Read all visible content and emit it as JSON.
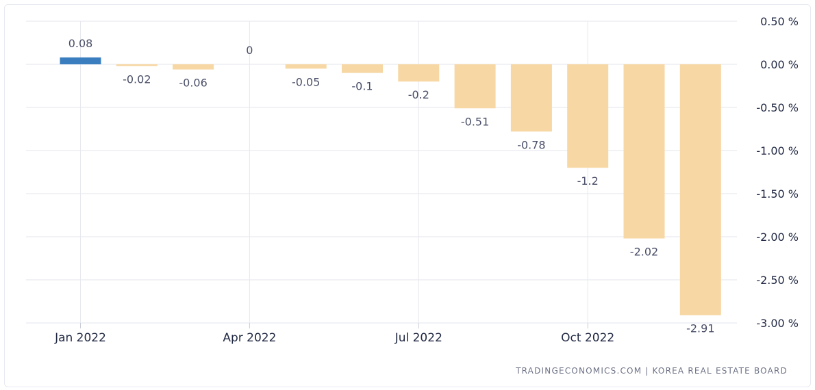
{
  "chart_data": {
    "type": "bar",
    "categories": [
      "Jan 2022",
      "Feb 2022",
      "Mar 2022",
      "Apr 2022",
      "May 2022",
      "Jun 2022",
      "Jul 2022",
      "Aug 2022",
      "Sep 2022",
      "Oct 2022",
      "Nov 2022",
      "Dec 2022"
    ],
    "values": [
      0.08,
      -0.02,
      -0.06,
      0,
      -0.05,
      -0.1,
      -0.2,
      -0.51,
      -0.78,
      -1.2,
      -2.02,
      -2.91
    ],
    "data_labels": [
      "0.08",
      "-0.02",
      "-0.06",
      "0",
      "-0.05",
      "-0.1",
      "-0.2",
      "-0.51",
      "-0.78",
      "-1.2",
      "-2.02",
      "-2.91"
    ],
    "x_tick_labels": [
      "Jan 2022",
      "Apr 2022",
      "Jul 2022",
      "Oct 2022"
    ],
    "x_tick_categories": [
      "Jan 2022",
      "Apr 2022",
      "Jul 2022",
      "Oct 2022"
    ],
    "y_ticks": [
      0.5,
      0,
      -0.5,
      -1,
      -1.5,
      -2,
      -2.5,
      -3
    ],
    "y_tick_labels": [
      "0.50 %",
      "0.00 %",
      "-0.50 %",
      "-1.00 %",
      "-1.50 %",
      "-2.00 %",
      "-2.50 %",
      "-3.00 %"
    ],
    "ylim": [
      -3,
      0.5
    ],
    "y_axis_side": "right",
    "grid": true,
    "title": "",
    "xlabel": "",
    "ylabel": "",
    "colors": {
      "positive": "#3a7ebf",
      "negative": "#f7d7a3",
      "grid": "#e3e6ee"
    }
  },
  "source_text": "TRADINGECONOMICS.COM | KOREA REAL ESTATE BOARD"
}
